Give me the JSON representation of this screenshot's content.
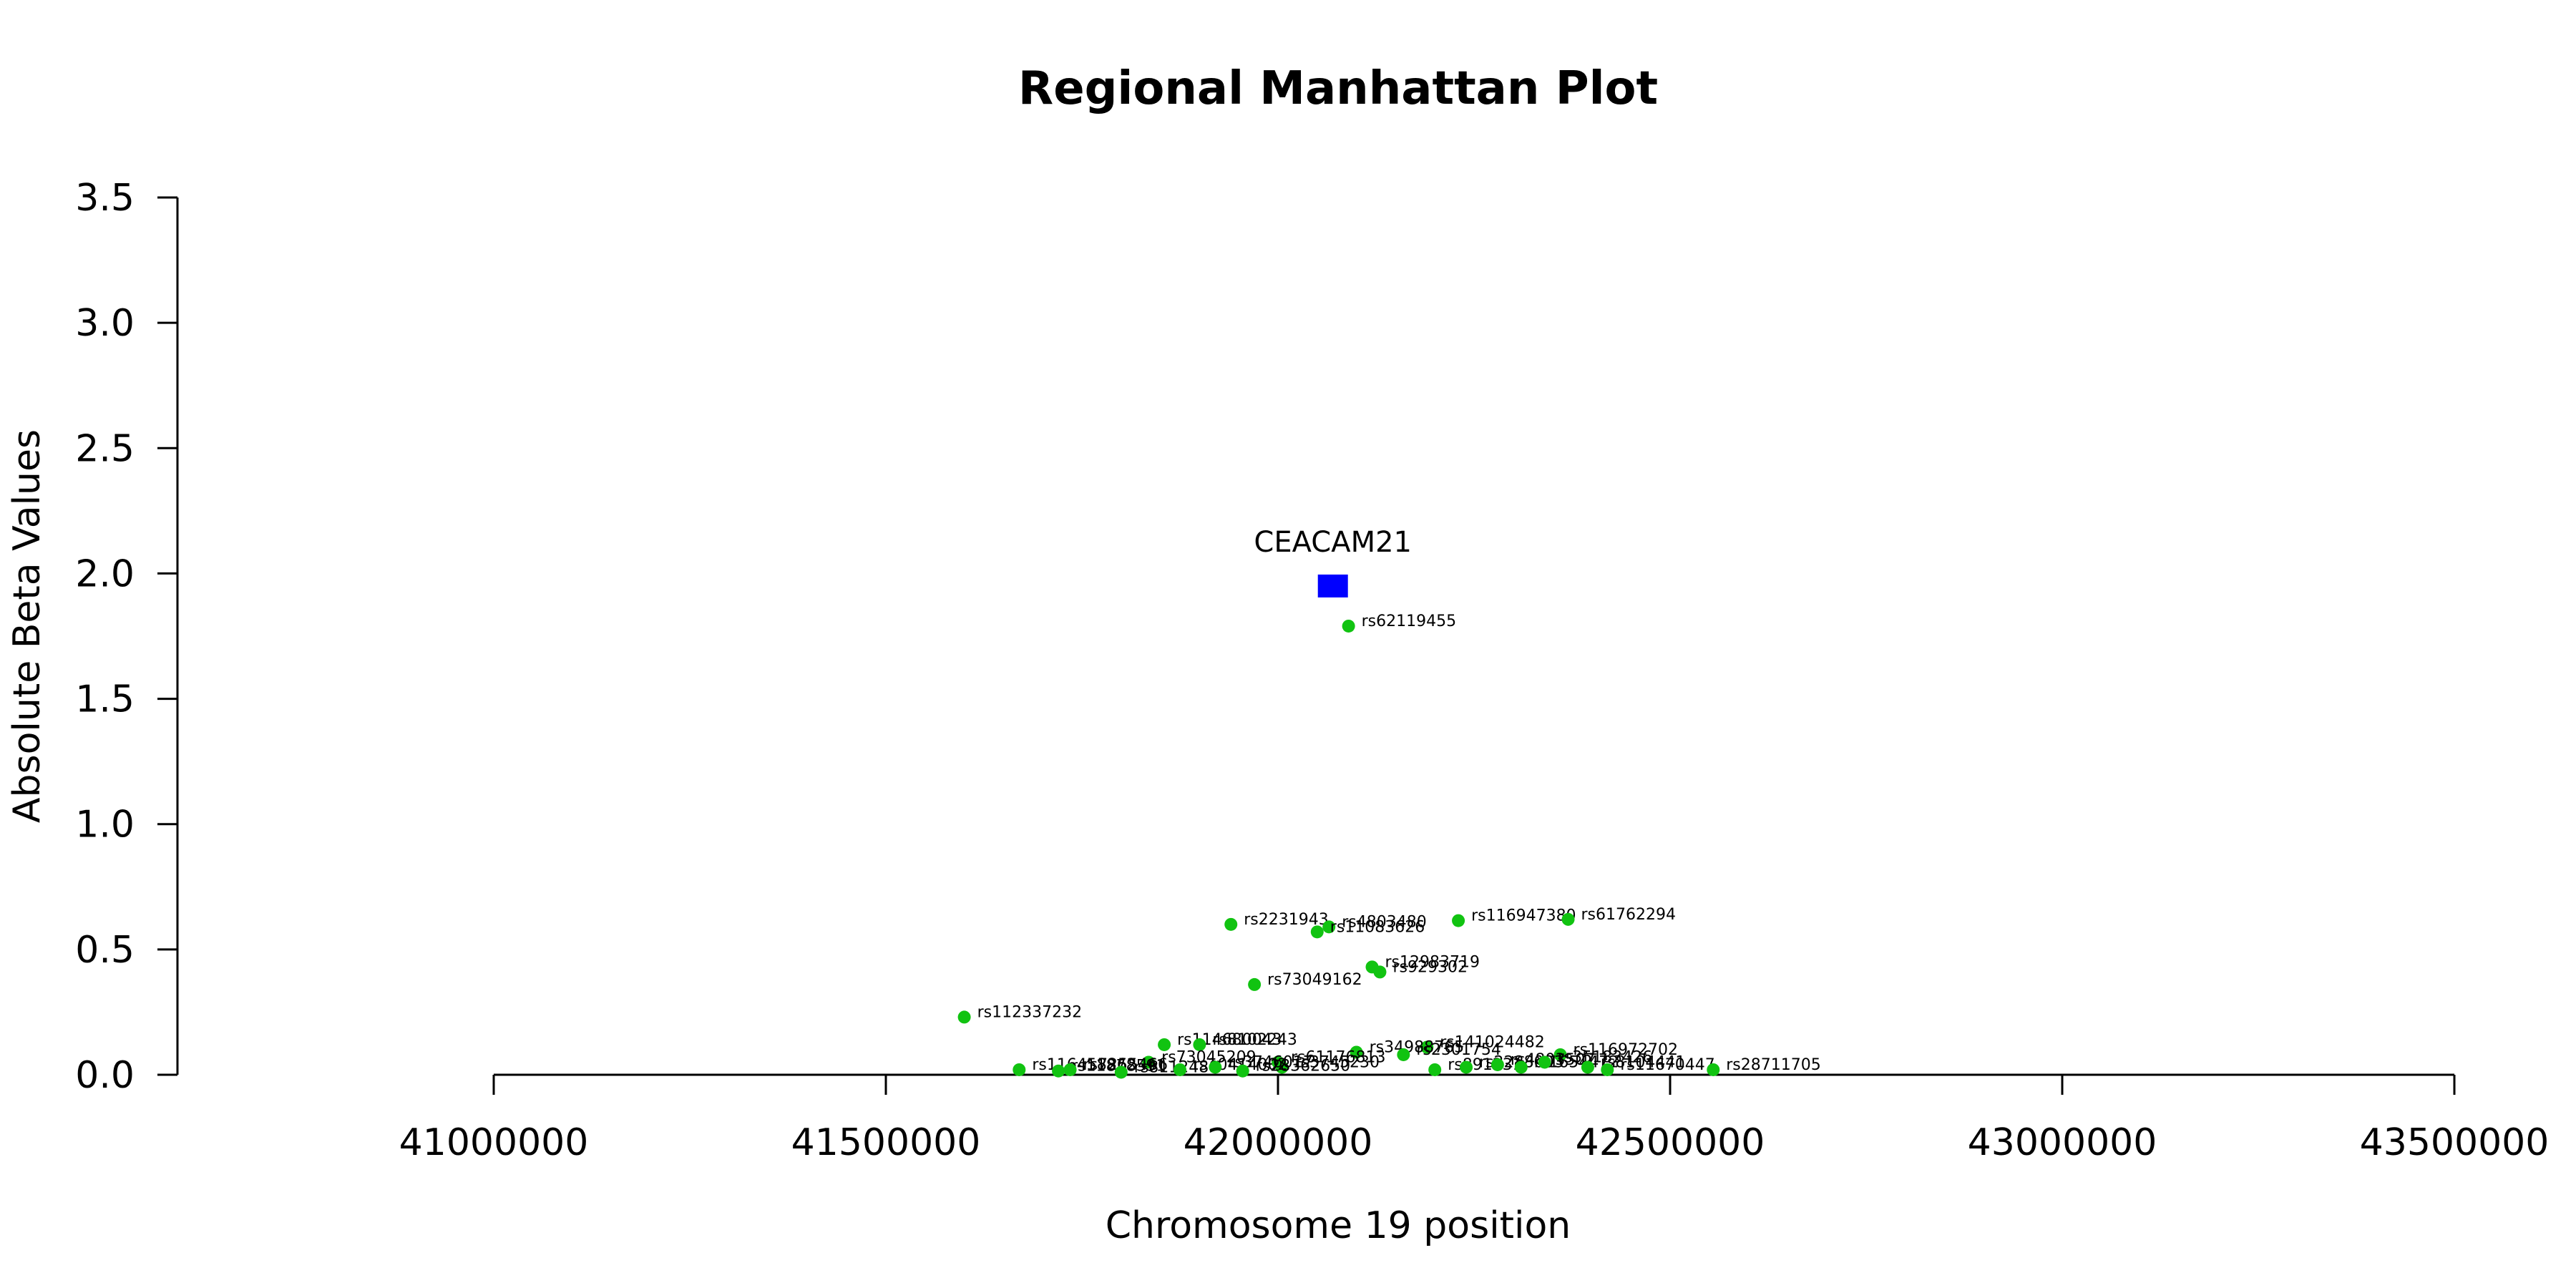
{
  "chart_data": {
    "type": "scatter",
    "title": "Regional Manhattan Plot",
    "xlabel": "Chromosome 19 position",
    "ylabel": "Absolute Beta Values",
    "xlim": [
      40600000,
      43500000
    ],
    "ylim": [
      0,
      3.5
    ],
    "x_ticks": [
      41000000,
      41500000,
      42000000,
      42500000,
      43000000,
      43500000
    ],
    "x_tick_labels": [
      "41000000",
      "41500000",
      "42000000",
      "42500000",
      "43000000",
      "43500000"
    ],
    "y_ticks": [
      0.0,
      0.5,
      1.0,
      1.5,
      2.0,
      2.5,
      3.0,
      3.5
    ],
    "y_tick_labels": [
      "0.0",
      "0.5",
      "1.0",
      "1.5",
      "2.0",
      "2.5",
      "3.0",
      "3.5"
    ],
    "colors": {
      "snp": "#11c311",
      "gene": "#0000ff",
      "axis": "#000000"
    },
    "gene_points": [
      {
        "name": "CEACAM21",
        "x": 42070000,
        "y": 1.95
      }
    ],
    "snp_points": [
      {
        "rsid": "rs62119455",
        "x": 42090000,
        "y": 1.79
      },
      {
        "rsid": "rs2231943",
        "x": 41940000,
        "y": 0.6
      },
      {
        "rsid": "rs4803480",
        "x": 42065000,
        "y": 0.59
      },
      {
        "rsid": "rs11083626",
        "x": 42050000,
        "y": 0.57
      },
      {
        "rsid": "rs116947380",
        "x": 42230000,
        "y": 0.615
      },
      {
        "rsid": "rs61762294",
        "x": 42370000,
        "y": 0.62
      },
      {
        "rsid": "rs12983719",
        "x": 42120000,
        "y": 0.43
      },
      {
        "rsid": "rs929302",
        "x": 42130000,
        "y": 0.41
      },
      {
        "rsid": "rs73049162",
        "x": 41970000,
        "y": 0.36
      },
      {
        "rsid": "rs112337232",
        "x": 41600000,
        "y": 0.23
      },
      {
        "rsid": "rs114680043",
        "x": 41855000,
        "y": 0.12
      },
      {
        "rsid": "rs8102243",
        "x": 41900000,
        "y": 0.12
      },
      {
        "rsid": "rs141024482",
        "x": 42190000,
        "y": 0.11
      },
      {
        "rsid": "rs34988765",
        "x": 42100000,
        "y": 0.09
      },
      {
        "rsid": "rs2301754",
        "x": 42160000,
        "y": 0.08
      },
      {
        "rsid": "rs116972702",
        "x": 42360000,
        "y": 0.08
      },
      {
        "rsid": "rs73045209",
        "x": 41835000,
        "y": 0.05
      },
      {
        "rsid": "rs61176813",
        "x": 42000000,
        "y": 0.05
      },
      {
        "rsid": "rs3745230",
        "x": 42005000,
        "y": 0.03
      },
      {
        "rsid": "rs116458862",
        "x": 41670000,
        "y": 0.02
      },
      {
        "rsid": "rs11878591",
        "x": 41720000,
        "y": 0.015
      },
      {
        "rsid": "rs7255466",
        "x": 41735000,
        "y": 0.02
      },
      {
        "rsid": "rs8112480",
        "x": 41800000,
        "y": 0.01
      },
      {
        "rsid": "rs10414002",
        "x": 41875000,
        "y": 0.02
      },
      {
        "rsid": "rs3746017",
        "x": 41920000,
        "y": 0.03
      },
      {
        "rsid": "rs28362650",
        "x": 41955000,
        "y": 0.015
      },
      {
        "rsid": "rs891231",
        "x": 42200000,
        "y": 0.02
      },
      {
        "rsid": "rs2288003",
        "x": 42240000,
        "y": 0.03
      },
      {
        "rsid": "rs4803507",
        "x": 42280000,
        "y": 0.04
      },
      {
        "rsid": "rs1654472",
        "x": 42310000,
        "y": 0.03
      },
      {
        "rsid": "rs35183426",
        "x": 42340000,
        "y": 0.05
      },
      {
        "rsid": "rs8104441",
        "x": 42395000,
        "y": 0.03
      },
      {
        "rsid": "rs11670447",
        "x": 42420000,
        "y": 0.02
      },
      {
        "rsid": "rs28711705",
        "x": 42555000,
        "y": 0.02
      }
    ]
  }
}
